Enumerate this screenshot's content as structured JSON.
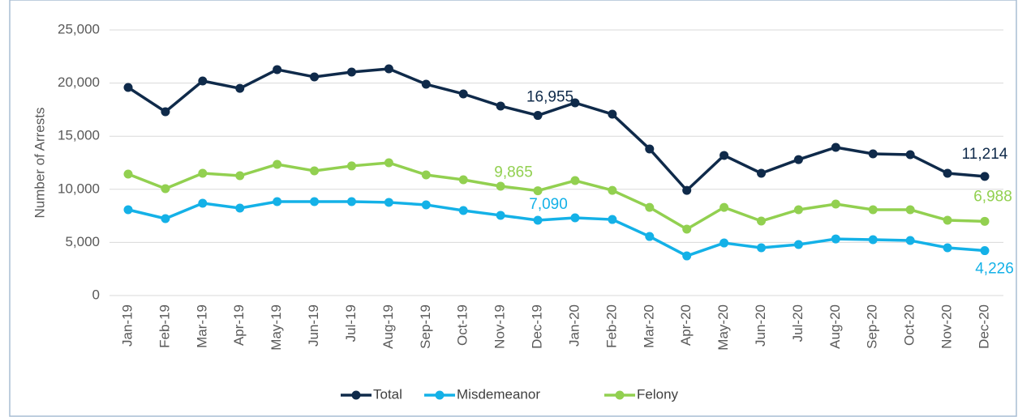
{
  "chart_data": {
    "type": "line",
    "ylabel": "Number of Arrests",
    "categories": [
      "Jan-19",
      "Feb-19",
      "Mar-19",
      "Apr-19",
      "May-19",
      "Jun-19",
      "Jul-19",
      "Aug-19",
      "Sep-19",
      "Oct-19",
      "Nov-19",
      "Dec-19",
      "Jan-20",
      "Feb-20",
      "Mar-20",
      "Apr-20",
      "May-20",
      "Jun-20",
      "Jul-20",
      "Aug-20",
      "Sep-20",
      "Oct-20",
      "Nov-20",
      "Dec-20"
    ],
    "series": [
      {
        "name": "Total",
        "color": "#0f2a4a",
        "values": [
          19590,
          17300,
          20200,
          19500,
          21270,
          20580,
          21040,
          21340,
          19890,
          18980,
          17840,
          16955,
          18140,
          17070,
          13800,
          9900,
          13190,
          11510,
          12800,
          13950,
          13340,
          13260,
          11510,
          11214
        ],
        "value_labels": [
          null,
          null,
          null,
          null,
          null,
          null,
          null,
          null,
          null,
          null,
          null,
          "16,955",
          null,
          null,
          null,
          null,
          null,
          null,
          null,
          null,
          null,
          null,
          null,
          "11,214"
        ]
      },
      {
        "name": "Misdemeanor",
        "color": "#14b1e7",
        "values": [
          8080,
          7240,
          8690,
          8230,
          8840,
          8840,
          8840,
          8770,
          8540,
          8000,
          7550,
          7090,
          7320,
          7160,
          5560,
          3730,
          4950,
          4500,
          4800,
          5330,
          5260,
          5180,
          4500,
          4226
        ],
        "value_labels": [
          null,
          null,
          null,
          null,
          null,
          null,
          null,
          null,
          null,
          null,
          null,
          "7,090",
          null,
          null,
          null,
          null,
          null,
          null,
          null,
          null,
          null,
          null,
          null,
          "4,226"
        ]
      },
      {
        "name": "Felony",
        "color": "#92d050",
        "values": [
          11430,
          10060,
          11510,
          11280,
          12350,
          11740,
          12200,
          12500,
          11360,
          10900,
          10290,
          9865,
          10820,
          9900,
          8300,
          6250,
          8300,
          7010,
          8080,
          8610,
          8080,
          8080,
          7090,
          6988
        ],
        "value_labels": [
          null,
          null,
          null,
          null,
          null,
          null,
          null,
          null,
          null,
          null,
          null,
          "9,865",
          null,
          null,
          null,
          null,
          null,
          null,
          null,
          null,
          null,
          null,
          null,
          "6,988"
        ]
      }
    ],
    "ylim": [
      0,
      25000
    ],
    "yticks": [
      0,
      {
        "value": 5000,
        "label": "5,000"
      },
      {
        "value": 10000,
        "label": "10,000"
      },
      {
        "value": 15000,
        "label": "15,000"
      },
      {
        "value": 20000,
        "label": "20,000"
      },
      {
        "value": 25000,
        "label": "25,000"
      }
    ],
    "grid": true,
    "legend": "bottom"
  }
}
